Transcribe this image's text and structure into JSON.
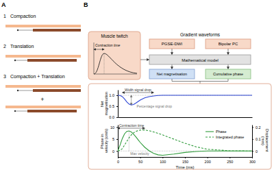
{
  "diagram": {
    "panel_a": {
      "label": "A",
      "items": [
        {
          "number": "1",
          "label": "Compaction"
        },
        {
          "number": "2",
          "label": "Translation"
        },
        {
          "number": "3",
          "label": "Compaction + Translation"
        }
      ],
      "plus": "+"
    },
    "panel_b": {
      "label": "B",
      "muscle_twitch": {
        "title": "Muscle twitch",
        "annotation": "Contraction time"
      },
      "gradient_waveforms": {
        "title": "Gradient waveforms",
        "boxes": [
          "PGSE-DWI",
          "Bipolar PC"
        ]
      },
      "model": "Mathematical model",
      "outputs": [
        "Net magnetisation",
        "Cumulative phase"
      ]
    }
  },
  "chart_data": [
    {
      "type": "line",
      "y_label": "Net magnetisation",
      "x": [
        0,
        5,
        10,
        15,
        20,
        25,
        30,
        35,
        40,
        45,
        50,
        60,
        70,
        80,
        90,
        100,
        125,
        150,
        175,
        200,
        250,
        300
      ],
      "xlim": [
        0,
        300
      ],
      "ylim": [
        0,
        1.25
      ],
      "yticks": [
        {
          "value": 0,
          "label": "0.0"
        },
        0.5,
        {
          "value": 1,
          "label": "1.0"
        }
      ],
      "tick_labels": "y",
      "series": [
        {
          "color": "#2b44d4",
          "values": [
            1,
            0.99,
            0.94,
            0.83,
            0.7,
            0.6,
            0.56,
            0.58,
            0.64,
            0.71,
            0.78,
            0.88,
            0.94,
            0.97,
            0.99,
            1,
            1,
            1,
            1,
            1,
            1,
            1
          ]
        }
      ],
      "annotations": [
        "Width signal drop",
        "Percentage signal drop"
      ]
    },
    {
      "type": "line",
      "x_label": "Time (ms)",
      "y_label": "Phase in velocity (cm/s)",
      "y2_label": "Displacement (mm)",
      "x": [
        0,
        5,
        10,
        15,
        20,
        25,
        30,
        35,
        40,
        45,
        50,
        60,
        70,
        80,
        90,
        100,
        125,
        150,
        175,
        200,
        250,
        300
      ],
      "xlim": [
        0,
        300
      ],
      "xticks": [
        0,
        50,
        100,
        150,
        200,
        250,
        300
      ],
      "ylim": [
        -2.5,
        11
      ],
      "yticks": [
        0,
        5,
        10
      ],
      "y2lim": [
        -0.05,
        0.22
      ],
      "y2ticks": [
        0,
        0.1,
        0.2
      ],
      "legend": "upper right",
      "series": [
        {
          "name": "Phase",
          "color": "#2e9b3a",
          "line_style": "solid",
          "values": [
            0,
            2.5,
            5.2,
            7.2,
            8.2,
            8.4,
            8,
            7.1,
            6,
            4.8,
            3.6,
            1.6,
            0.1,
            -1,
            -1.6,
            -1.8,
            -1.3,
            -0.6,
            -0.2,
            0,
            0,
            0
          ]
        },
        {
          "name": "Integrated phase",
          "color": "#2e9b3a",
          "line_style": "dashed",
          "axis": "y2",
          "values": [
            0,
            0.005,
            0.02,
            0.05,
            0.08,
            0.11,
            0.135,
            0.152,
            0.164,
            0.171,
            0.175,
            0.176,
            0.17,
            0.16,
            0.148,
            0.135,
            0.1,
            0.065,
            0.035,
            0.015,
            0.002,
            0
          ]
        }
      ],
      "annotations": [
        "Contraction time",
        "Max velocity"
      ]
    }
  ]
}
